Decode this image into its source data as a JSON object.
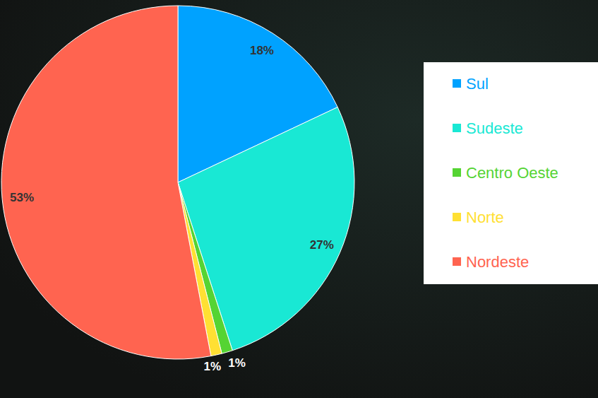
{
  "chart_data": {
    "type": "pie",
    "categories": [
      "Sul",
      "Sudeste",
      "Centro Oeste",
      "Norte",
      "Nordeste"
    ],
    "values": [
      18,
      27,
      1,
      1,
      53
    ],
    "value_labels": [
      "18%",
      "27%",
      "1%",
      "1%",
      "53%"
    ],
    "colors": [
      "#00a2ff",
      "#19e8d4",
      "#55d433",
      "#ffe033",
      "#ff6450"
    ],
    "data_labels": true,
    "legend": "right"
  }
}
